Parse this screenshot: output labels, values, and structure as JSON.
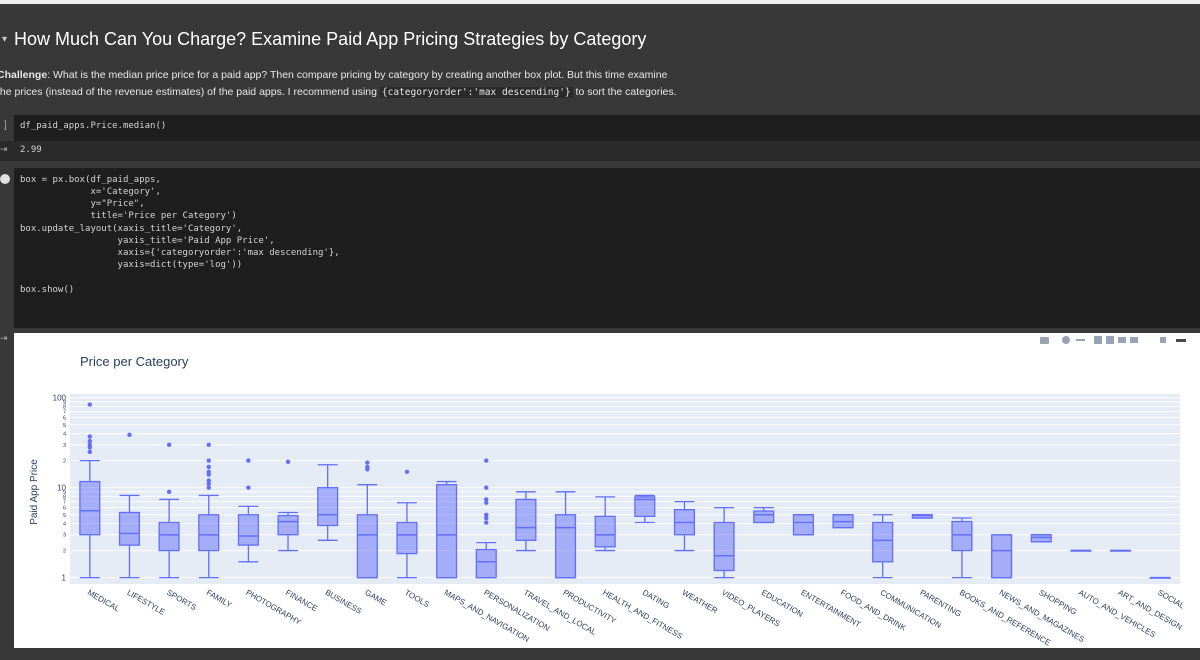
{
  "notebook": {
    "heading": "How Much Can You Charge? Examine Paid App Pricing Strategies by Category",
    "paragraph": {
      "bold": "Challenge",
      "line1": ": What is the median price price for a paid app? Then compare pricing by category by creating another box plot. But this time examine",
      "line2": "the prices (instead of the revenue estimates) of the paid apps. I recommend using ",
      "code": "{categoryorder':'max descending'}",
      "line2_end": " to sort the categories."
    },
    "cells": [
      {
        "blocks": [
          [
            "df_paid_apps.Price.median()"
          ]
        ],
        "output": "2.99"
      },
      {
        "blocks": [
          [
            "box = px.box(df_paid_apps,",
            "             x='Category',",
            "             y=\"Price\",",
            "             title='Price per Category')"
          ],
          [
            "box.update_layout(xaxis_title='Category',",
            "                  yaxis_title='Paid App Price',",
            "                  xaxis={'categoryorder':'max descending'},",
            "                  yaxis=dict(type='log'))"
          ],
          [
            "box.show()"
          ]
        ]
      }
    ]
  },
  "chart_data": {
    "type": "box",
    "title": "Price per Category",
    "y_label": "Paid App Price",
    "log_y": true,
    "grid": true,
    "color": "#636efa",
    "ylim": [
      0.85,
      110
    ],
    "yticks": [
      1,
      2,
      3,
      4,
      5,
      6,
      7,
      8,
      9,
      10,
      {
        "value": 20,
        "label": "2"
      },
      {
        "value": 30,
        "label": "3"
      },
      {
        "value": 40,
        "label": "4"
      },
      {
        "value": 50,
        "label": "5"
      },
      {
        "value": 60,
        "label": "6"
      },
      {
        "value": 70,
        "label": "7"
      },
      {
        "value": 80,
        "label": "8"
      },
      {
        "value": 90,
        "label": "9"
      },
      100
    ],
    "categories": [
      "MEDICAL",
      "LIFESTYLE",
      "SPORTS",
      "FAMILY",
      "PHOTOGRAPHY",
      "FINANCE",
      "BUSINESS",
      "GAME",
      "TOOLS",
      "MAPS_AND_NAVIGATION",
      "PERSONALIZATION",
      "TRAVEL_AND_LOCAL",
      "PRODUCTIVITY",
      "HEALTH_AND_FITNESS",
      "DATING",
      "WEATHER",
      "VIDEO_PLAYERS",
      "EDUCATION",
      "ENTERTAINMENT",
      "FOOD_AND_DRINK",
      "COMMUNICATION",
      "PARENTING",
      "BOOKS_AND_REFERENCE",
      "NEWS_AND_MAGAZINES",
      "SHOPPING",
      "AUTO_AND_VEHICLES",
      "ART_AND_DESIGN",
      "SOCIAL"
    ],
    "boxes": [
      {
        "min": 1,
        "q1": 3,
        "median": 5.55,
        "q3": 11.7,
        "max": 20,
        "outliers": [
          25,
          28,
          30,
          33,
          37,
          84
        ]
      },
      {
        "min": 1,
        "q1": 2.3,
        "median": 3.1,
        "q3": 5.3,
        "max": 8.2,
        "outliers": [
          38.7
        ]
      },
      {
        "min": 1,
        "q1": 2,
        "median": 2.99,
        "q3": 4.1,
        "max": 7.4,
        "outliers": [
          9,
          30
        ]
      },
      {
        "min": 1,
        "q1": 2,
        "median": 2.99,
        "q3": 5,
        "max": 8.2,
        "outliers": [
          10,
          11,
          12,
          14,
          15,
          17,
          20,
          30
        ]
      },
      {
        "min": 1.5,
        "q1": 2.3,
        "median": 2.9,
        "q3": 5,
        "max": 6.2,
        "outliers": [
          10,
          20
        ]
      },
      {
        "min": 2,
        "q1": 3,
        "median": 4.2,
        "q3": 4.9,
        "max": 5.3,
        "outliers": [
          19.4
        ]
      },
      {
        "min": 2.6,
        "q1": 3.8,
        "median": 5,
        "q3": 10,
        "max": 18,
        "outliers": []
      },
      {
        "min": 1,
        "q1": 1,
        "median": 2.99,
        "q3": 5,
        "max": 10.8,
        "outliers": [
          16,
          17,
          19
        ]
      },
      {
        "min": 1,
        "q1": 1.85,
        "median": 2.99,
        "q3": 4.1,
        "max": 6.8,
        "outliers": [
          15
        ]
      },
      {
        "min": 1,
        "q1": 1,
        "median": 2.99,
        "q3": 10.8,
        "max": 11.7,
        "outliers": []
      },
      {
        "min": 1,
        "q1": 1,
        "median": 1.5,
        "q3": 2.05,
        "max": 2.45,
        "outliers": [
          4.1,
          4.6,
          5,
          6.8,
          7.4,
          10,
          20
        ]
      },
      {
        "min": 2,
        "q1": 2.6,
        "median": 3.6,
        "q3": 7.4,
        "max": 9,
        "outliers": []
      },
      {
        "min": 1,
        "q1": 1,
        "median": 3.6,
        "q3": 5,
        "max": 9,
        "outliers": []
      },
      {
        "min": 2,
        "q1": 2.2,
        "median": 2.99,
        "q3": 4.8,
        "max": 7.9,
        "outliers": []
      },
      {
        "min": 4.1,
        "q1": 4.8,
        "median": 7.4,
        "q3": 7.9,
        "max": 8.2,
        "outliers": []
      },
      {
        "min": 2,
        "q1": 3,
        "median": 4.1,
        "q3": 5.7,
        "max": 7,
        "outliers": []
      },
      {
        "min": 1,
        "q1": 1.2,
        "median": 1.75,
        "q3": 4.1,
        "max": 6,
        "outliers": []
      },
      {
        "min": 4.1,
        "q1": 4.1,
        "median": 5,
        "q3": 5.5,
        "max": 6,
        "outliers": []
      },
      {
        "min": 3,
        "q1": 3,
        "median": 4.1,
        "q3": 5,
        "max": 5,
        "outliers": []
      },
      {
        "min": 3.6,
        "q1": 3.6,
        "median": 4.2,
        "q3": 5,
        "max": 5,
        "outliers": []
      },
      {
        "min": 1,
        "q1": 1.5,
        "median": 2.6,
        "q3": 4.1,
        "max": 5,
        "outliers": []
      },
      {
        "min": 4.6,
        "q1": 4.6,
        "median": 4.9,
        "q3": 5,
        "max": 5,
        "outliers": []
      },
      {
        "min": 1,
        "q1": 2,
        "median": 2.99,
        "q3": 4.2,
        "max": 4.6,
        "outliers": []
      },
      {
        "min": 1,
        "q1": 1,
        "median": 2,
        "q3": 2.99,
        "max": 2.99,
        "outliers": []
      },
      {
        "min": 2.5,
        "q1": 2.5,
        "median": 2.8,
        "q3": 3,
        "max": 3,
        "outliers": []
      },
      {
        "min": 2,
        "q1": 2,
        "median": 2,
        "q3": 2,
        "max": 2,
        "outliers": []
      },
      {
        "min": 2,
        "q1": 2,
        "median": 2,
        "q3": 2,
        "max": 2,
        "outliers": []
      },
      {
        "min": 1,
        "q1": 1,
        "median": 1,
        "q3": 1,
        "max": 1,
        "outliers": []
      }
    ]
  }
}
